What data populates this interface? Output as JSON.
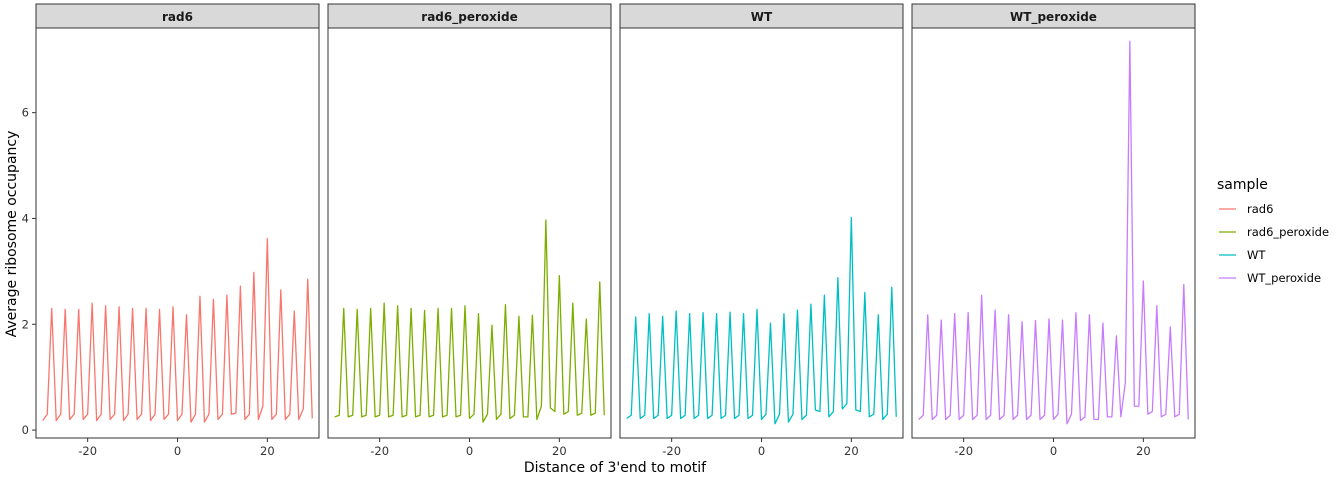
{
  "chart_data": {
    "type": "line",
    "facet_by": "sample",
    "xlabel": "Distance of 3'end to motif",
    "ylabel": "Average ribosome occupancy",
    "xlim": [
      -31.5,
      31.5
    ],
    "ylim": [
      -0.15,
      7.6
    ],
    "x_ticks": [
      -20,
      0,
      20
    ],
    "x_tick_labels": [
      "-20",
      "0",
      "20"
    ],
    "y_ticks": [
      0,
      2,
      4,
      6
    ],
    "y_tick_labels": [
      "0",
      "2",
      "4",
      "6"
    ],
    "legend": {
      "title": "sample",
      "entries": [
        "rad6",
        "rad6_peroxide",
        "WT",
        "WT_peroxide"
      ],
      "position": "right"
    },
    "x": [
      -30,
      -29,
      -28,
      -27,
      -26,
      -25,
      -24,
      -23,
      -22,
      -21,
      -20,
      -19,
      -18,
      -17,
      -16,
      -15,
      -14,
      -13,
      -12,
      -11,
      -10,
      -9,
      -8,
      -7,
      -6,
      -5,
      -4,
      -3,
      -2,
      -1,
      0,
      1,
      2,
      3,
      4,
      5,
      6,
      7,
      8,
      9,
      10,
      11,
      12,
      13,
      14,
      15,
      16,
      17,
      18,
      19,
      20,
      21,
      22,
      23,
      24,
      25,
      26,
      27,
      28,
      29,
      30
    ],
    "series": [
      {
        "name": "rad6",
        "color": "#F8766D",
        "values": [
          0.18,
          0.3,
          2.3,
          0.18,
          0.3,
          2.28,
          0.2,
          0.3,
          2.28,
          0.2,
          0.3,
          2.4,
          0.18,
          0.3,
          2.35,
          0.2,
          0.3,
          2.33,
          0.18,
          0.3,
          2.3,
          0.2,
          0.3,
          2.3,
          0.18,
          0.3,
          2.28,
          0.2,
          0.3,
          2.33,
          0.18,
          0.3,
          2.18,
          0.15,
          0.3,
          2.53,
          0.15,
          0.3,
          2.47,
          0.2,
          0.3,
          2.55,
          0.3,
          0.32,
          2.72,
          0.2,
          0.3,
          2.98,
          0.2,
          0.45,
          3.62,
          0.2,
          0.3,
          2.65,
          0.2,
          0.3,
          2.25,
          0.2,
          0.4,
          2.85,
          0.22
        ]
      },
      {
        "name": "rad6_peroxide",
        "color": "#7CAE00",
        "values": [
          0.25,
          0.28,
          2.3,
          0.25,
          0.28,
          2.28,
          0.25,
          0.28,
          2.3,
          0.25,
          0.28,
          2.4,
          0.25,
          0.28,
          2.35,
          0.25,
          0.28,
          2.3,
          0.25,
          0.28,
          2.26,
          0.25,
          0.28,
          2.3,
          0.25,
          0.28,
          2.3,
          0.25,
          0.28,
          2.35,
          0.22,
          0.3,
          2.2,
          0.15,
          0.3,
          1.98,
          0.2,
          0.3,
          2.37,
          0.22,
          0.28,
          2.15,
          0.25,
          0.25,
          2.17,
          0.2,
          0.45,
          3.97,
          0.42,
          0.35,
          2.92,
          0.3,
          0.35,
          2.4,
          0.28,
          0.32,
          2.1,
          0.28,
          0.32,
          2.8,
          0.28
        ]
      },
      {
        "name": "WT",
        "color": "#00BFC4",
        "values": [
          0.22,
          0.28,
          2.14,
          0.22,
          0.28,
          2.2,
          0.22,
          0.28,
          2.15,
          0.22,
          0.28,
          2.25,
          0.22,
          0.28,
          2.2,
          0.22,
          0.28,
          2.22,
          0.22,
          0.28,
          2.2,
          0.22,
          0.28,
          2.23,
          0.22,
          0.28,
          2.2,
          0.22,
          0.28,
          2.28,
          0.2,
          0.3,
          2.02,
          0.12,
          0.3,
          2.2,
          0.15,
          0.3,
          2.27,
          0.2,
          0.28,
          2.38,
          0.38,
          0.35,
          2.55,
          0.25,
          0.35,
          2.88,
          0.4,
          0.5,
          4.02,
          0.38,
          0.35,
          2.6,
          0.25,
          0.3,
          2.18,
          0.2,
          0.3,
          2.7,
          0.25
        ]
      },
      {
        "name": "WT_peroxide",
        "color": "#C77CFF",
        "values": [
          0.2,
          0.28,
          2.18,
          0.2,
          0.28,
          2.08,
          0.2,
          0.28,
          2.2,
          0.2,
          0.28,
          2.22,
          0.2,
          0.28,
          2.55,
          0.2,
          0.28,
          2.27,
          0.2,
          0.28,
          2.18,
          0.2,
          0.28,
          2.05,
          0.2,
          0.28,
          2.07,
          0.2,
          0.28,
          2.1,
          0.2,
          0.3,
          2.08,
          0.12,
          0.3,
          2.22,
          0.18,
          0.25,
          2.18,
          0.2,
          0.2,
          2.02,
          0.25,
          0.25,
          1.78,
          0.25,
          0.9,
          7.35,
          0.45,
          0.45,
          2.82,
          0.3,
          0.35,
          2.35,
          0.25,
          0.3,
          1.95,
          0.25,
          0.3,
          2.75,
          0.2
        ]
      }
    ]
  }
}
